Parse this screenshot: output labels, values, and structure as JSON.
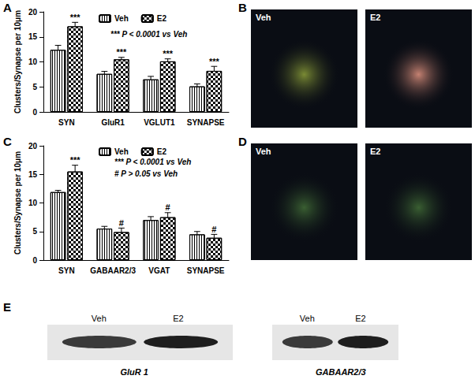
{
  "chart_data": [
    {
      "panel": "A",
      "type": "bar",
      "ylabel": "Clusters/Synapse per 10μm",
      "categories": [
        "SYN",
        "GluR1",
        "VGLUT1",
        "SYNAPSE"
      ],
      "series": [
        {
          "name": "Veh",
          "color": "#000000",
          "values": [
            12.4,
            7.6,
            6.5,
            5.1
          ],
          "errors": [
            0.9,
            0.5,
            0.6,
            0.5
          ]
        },
        {
          "name": "E2",
          "color": "#000000",
          "values": [
            17.1,
            10.5,
            10.1,
            8.2
          ],
          "errors": [
            0.8,
            0.4,
            0.5,
            0.9
          ]
        }
      ],
      "ylim": [
        0,
        20
      ],
      "yticks": [
        0,
        5,
        10,
        15,
        20
      ],
      "grid": false,
      "legend": "top",
      "annotations": [
        {
          "text": "***",
          "category": "SYN",
          "series": "E2"
        },
        {
          "text": "***",
          "category": "GluR1",
          "series": "E2"
        },
        {
          "text": "***",
          "category": "VGLUT1",
          "series": "E2"
        },
        {
          "text": "***",
          "category": "SYNAPSE",
          "series": "E2"
        }
      ],
      "key_texts": [
        "*** P < 0.0001 vs Veh"
      ]
    },
    {
      "panel": "C",
      "type": "bar",
      "ylabel": "Clusters/Synapse per 10μm",
      "categories": [
        "SYN",
        "GABAAR2/3",
        "VGAT",
        "SYNAPSE"
      ],
      "series": [
        {
          "name": "Veh",
          "color": "#000000",
          "values": [
            11.9,
            5.5,
            7.0,
            4.5
          ],
          "errors": [
            0.3,
            0.4,
            0.6,
            0.5
          ]
        },
        {
          "name": "E2",
          "color": "#000000",
          "values": [
            15.5,
            4.9,
            7.5,
            3.9
          ],
          "errors": [
            1.1,
            0.7,
            0.8,
            0.6
          ]
        }
      ],
      "ylim": [
        0,
        20
      ],
      "yticks": [
        0,
        5,
        10,
        15,
        20
      ],
      "grid": false,
      "legend": "top",
      "annotations": [
        {
          "text": "***",
          "category": "SYN",
          "series": "E2"
        },
        {
          "text": "#",
          "category": "GABAAR2/3",
          "series": "E2"
        },
        {
          "text": "#",
          "category": "VGAT",
          "series": "E2"
        },
        {
          "text": "#",
          "category": "SYNAPSE",
          "series": "E2"
        }
      ],
      "key_texts": [
        "*** P < 0.0001 vs Veh",
        "# P > 0.05 vs Veh"
      ]
    }
  ],
  "images": [
    {
      "panel": "B",
      "labels": [
        "Veh",
        "E2"
      ]
    },
    {
      "panel": "D",
      "labels": [
        "Veh",
        "E2"
      ]
    }
  ],
  "blot": {
    "panel": "E",
    "lanes": [
      "Veh",
      "E2"
    ],
    "labels": [
      "GluR 1",
      "GABAAR2/3"
    ]
  }
}
